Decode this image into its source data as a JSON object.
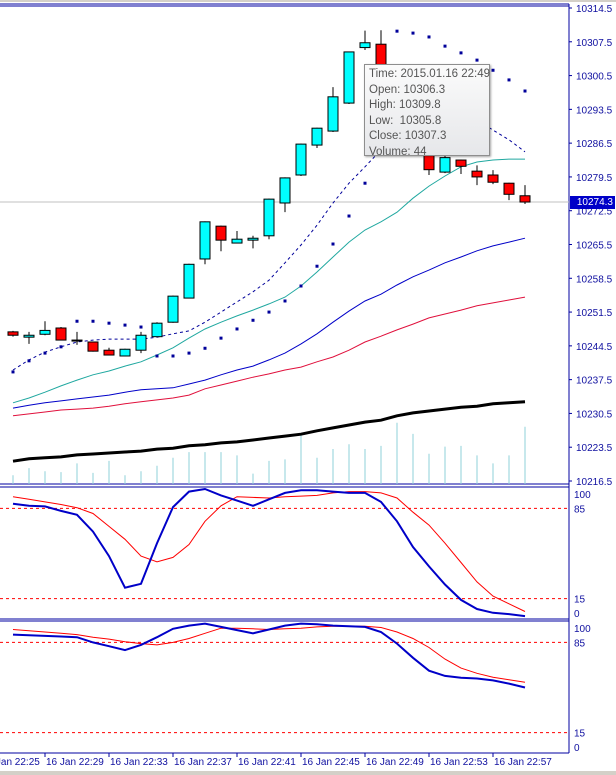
{
  "window": {
    "symbol_timeframe": ""
  },
  "colors": {
    "bull": "#00ffff",
    "bear": "#ff0000",
    "axis": "#0000a0",
    "sar": "#00009a",
    "ma_fast": "#00009a",
    "ma_teal": "#20a8a0",
    "ma_blue": "#0000c8",
    "ma_red": "#e0103c",
    "ma_black": "#000000",
    "volume": "#8fd0d8",
    "stoch_main": "#0000c8",
    "stoch_signal": "#ff0000",
    "level": "#ff0000",
    "price_line": "#c0c0c0",
    "price_box": "#0000c8"
  },
  "price_axis": {
    "labels": [
      "10314.5",
      "10307.5",
      "10300.5",
      "10293.5",
      "10286.5",
      "10279.5",
      "10272.5",
      "10265.5",
      "10258.5",
      "10251.5",
      "10244.5",
      "10237.5",
      "10230.5",
      "10223.5",
      "10216.5"
    ],
    "range": [
      10216.5,
      10314.5
    ]
  },
  "current_price": "10274.3",
  "time_axis": {
    "labels": [
      "16 Jan 22:25",
      "16 Jan 22:29",
      "16 Jan 22:33",
      "16 Jan 22:37",
      "16 Jan 22:41",
      "16 Jan 22:45",
      "16 Jan 22:49",
      "16 Jan 22:53",
      "16 Jan 22:57"
    ]
  },
  "tooltip": {
    "time": "Time: 2015.01.16 22:49",
    "open": "Open: 10306.3",
    "high": "High: 10309.8",
    "low": "Low:  10305.8",
    "close": "Close: 10307.3",
    "volume": "Volume: 44"
  },
  "chart_data": {
    "type": "candlestick",
    "times": [
      "22:27",
      "22:28",
      "22:29",
      "22:30",
      "22:31",
      "22:32",
      "22:33",
      "22:34",
      "22:35",
      "22:36",
      "22:37",
      "22:38",
      "22:39",
      "22:40",
      "22:41",
      "22:42",
      "22:43",
      "22:44",
      "22:45",
      "22:46",
      "22:47",
      "22:48",
      "22:49",
      "22:50",
      "22:51",
      "22:52",
      "22:53",
      "22:54",
      "22:55",
      "22:56",
      "22:57",
      "22:58",
      "22:59"
    ],
    "candles": [
      [
        10247.4,
        10247.6,
        10246.4,
        10246.7
      ],
      [
        10246.3,
        10247.4,
        10244.9,
        10246.7
      ],
      [
        10246.9,
        10249.6,
        10246.7,
        10247.7
      ],
      [
        10248.2,
        10248.4,
        10245.6,
        10245.7
      ],
      [
        10245.7,
        10247.4,
        10244.7,
        10245.6
      ],
      [
        10245.3,
        10245.4,
        10243.3,
        10243.4
      ],
      [
        10243.6,
        10244.1,
        10242.5,
        10242.6
      ],
      [
        10242.4,
        10243.9,
        10242.3,
        10243.8
      ],
      [
        10243.6,
        10247.4,
        10243.0,
        10246.7
      ],
      [
        10246.4,
        10249.4,
        10246.3,
        10249.2
      ],
      [
        10249.4,
        10254.9,
        10249.3,
        10254.8
      ],
      [
        10254.4,
        10261.5,
        10254.3,
        10261.4
      ],
      [
        10262.5,
        10270.3,
        10261.4,
        10270.2
      ],
      [
        10269.3,
        10269.4,
        10264.1,
        10266.4
      ],
      [
        10265.8,
        10268.3,
        10265.7,
        10266.6
      ],
      [
        10266.4,
        10267.3,
        10264.7,
        10266.8
      ],
      [
        10267.3,
        10275.0,
        10266.6,
        10274.9
      ],
      [
        10274.1,
        10279.4,
        10272.2,
        10279.3
      ],
      [
        10279.9,
        10286.4,
        10279.7,
        10286.3
      ],
      [
        10286.1,
        10289.7,
        10285.5,
        10289.6
      ],
      [
        10289.0,
        10298.1,
        10288.8,
        10296.1
      ],
      [
        10294.8,
        10305.5,
        10294.6,
        10305.4
      ],
      [
        10306.3,
        10309.8,
        10305.8,
        10307.3
      ],
      [
        10307.0,
        10309.9,
        10296.8,
        10298.0
      ],
      [
        10298.0,
        10299.0,
        10291.5,
        10292.0
      ],
      [
        10292.0,
        10293.0,
        10288.5,
        10289.0
      ],
      [
        10284.5,
        10285.6,
        10279.9,
        10281.0
      ],
      [
        10280.5,
        10284.5,
        10280.3,
        10283.5
      ],
      [
        10283.0,
        10283.1,
        10280.1,
        10281.7
      ],
      [
        10280.7,
        10281.9,
        10277.8,
        10279.5
      ],
      [
        10279.9,
        10280.9,
        10278.0,
        10278.4
      ],
      [
        10278.2,
        10278.3,
        10274.7,
        10275.9
      ],
      [
        10275.6,
        10277.8,
        10273.9,
        10274.3
      ]
    ],
    "volume": [
      11,
      20,
      16,
      15,
      26,
      14,
      29,
      11,
      16,
      23,
      33,
      40,
      40,
      40,
      36,
      13,
      29,
      31,
      64,
      33,
      44,
      50,
      44,
      48,
      77,
      63,
      38,
      47,
      48,
      36,
      26,
      36,
      72
    ],
    "parabolic_sar": [
      10239.1,
      10241.4,
      10243.0,
      10244.3,
      10249.6,
      10249.6,
      10249.2,
      10248.8,
      10248.4,
      10242.4,
      10242.4,
      10243.0,
      10244.0,
      10246.1,
      10248.0,
      10249.8,
      10251.5,
      10253.8,
      10256.9,
      10261.0,
      10265.6,
      10271.4,
      10278.2,
      null,
      10309.7,
      10309.3,
      10308.5,
      10306.6,
      10305.2,
      10303.7,
      10301.6,
      10299.6,
      10297.3
    ],
    "ma_dashed": [
      10239.5,
      10241.6,
      10243.2,
      10244.3,
      10245.3,
      10245.7,
      10245.9,
      10245.9,
      10245.9,
      10246.3,
      10247.0,
      10247.6,
      10249.4,
      10251.5,
      10253.6,
      10255.7,
      10258.1,
      10261.7,
      10265.4,
      10269.5,
      10274.1,
      10278.2,
      10281.6,
      10285.1,
      10289.2,
      10291.7,
      10293.0,
      10293.0,
      10292.3,
      10291.3,
      10289.2,
      10287.2,
      10284.7
    ],
    "ma_teal": [
      10232.7,
      10233.7,
      10234.9,
      10236.2,
      10237.4,
      10238.5,
      10239.3,
      10240.3,
      10241.2,
      10242.6,
      10244.1,
      10246.1,
      10248.0,
      10249.4,
      10250.7,
      10251.9,
      10253.2,
      10254.6,
      10256.9,
      10259.8,
      10262.9,
      10266.0,
      10268.5,
      10270.2,
      10272.2,
      10275.1,
      10277.6,
      10279.7,
      10281.6,
      10282.6,
      10283.0,
      10283.2,
      10283.2
    ],
    "ma_blue": [
      10231.6,
      10232.2,
      10232.7,
      10233.1,
      10233.5,
      10233.9,
      10234.3,
      10234.9,
      10235.4,
      10235.6,
      10235.8,
      10236.6,
      10237.4,
      10238.5,
      10239.5,
      10240.3,
      10241.6,
      10243.0,
      10244.9,
      10247.0,
      10249.4,
      10251.7,
      10253.8,
      10255.2,
      10257.1,
      10258.8,
      10260.2,
      10261.7,
      10262.9,
      10264.2,
      10265.2,
      10266.0,
      10266.8
    ],
    "ma_red": [
      10230.0,
      10230.4,
      10230.8,
      10231.2,
      10231.4,
      10231.6,
      10232.0,
      10232.5,
      10232.9,
      10233.3,
      10233.7,
      10234.3,
      10235.6,
      10236.4,
      10237.2,
      10238.0,
      10238.7,
      10239.5,
      10240.1,
      10241.2,
      10242.2,
      10243.6,
      10245.3,
      10246.5,
      10247.8,
      10249.0,
      10250.3,
      10251.1,
      10251.9,
      10252.8,
      10253.4,
      10254.0,
      10254.6
    ],
    "ma_black": [
      10220.6,
      10221.1,
      10221.3,
      10221.5,
      10221.9,
      10222.1,
      10222.3,
      10222.5,
      10222.7,
      10223.1,
      10223.3,
      10223.8,
      10224.0,
      10224.4,
      10224.6,
      10225.0,
      10225.4,
      10225.8,
      10226.2,
      10226.9,
      10227.5,
      10228.1,
      10228.7,
      10229.1,
      10230.0,
      10230.6,
      10231.0,
      10231.4,
      10231.8,
      10232.0,
      10232.5,
      10232.7,
      10232.9
    ],
    "stochastic_panels": [
      {
        "levels": [
          85,
          15
        ],
        "axis_labels": [
          "100",
          "85",
          "15",
          "0"
        ],
        "main": [
          88.5,
          87,
          86.5,
          83,
          80,
          67,
          48,
          23.5,
          26.5,
          58,
          86,
          98,
          100,
          95,
          91,
          87,
          92,
          97,
          99,
          99,
          98,
          97,
          97,
          90,
          75,
          55,
          40,
          26,
          14,
          7,
          4,
          3,
          1.5
        ],
        "signal": [
          94,
          92,
          90,
          88,
          85.5,
          81,
          71,
          61,
          48,
          43.5,
          47,
          57,
          75,
          87,
          94,
          93.5,
          93,
          94,
          94.5,
          95,
          97,
          98,
          98,
          97,
          93,
          82,
          72,
          58,
          43,
          28,
          17,
          11,
          5
        ]
      },
      {
        "levels": [
          85,
          15
        ],
        "axis_labels": [
          "100",
          "85",
          "15",
          "0"
        ],
        "main": [
          91,
          90.5,
          90,
          89.5,
          89,
          85,
          82,
          79,
          83,
          89,
          95.5,
          98,
          99.5,
          97,
          94.5,
          92,
          95,
          98,
          99.5,
          99,
          98,
          97.5,
          97,
          93,
          84,
          73,
          63,
          59,
          57.5,
          57,
          55.5,
          53,
          50
        ],
        "signal": [
          95,
          94,
          93,
          92,
          91,
          89,
          87.5,
          85.5,
          84,
          83,
          85,
          88,
          92,
          96,
          96,
          95.5,
          95,
          95.5,
          96,
          97,
          97.5,
          97.5,
          97.5,
          96.5,
          93,
          88,
          81,
          72,
          65,
          61,
          58,
          56,
          54
        ]
      }
    ]
  }
}
